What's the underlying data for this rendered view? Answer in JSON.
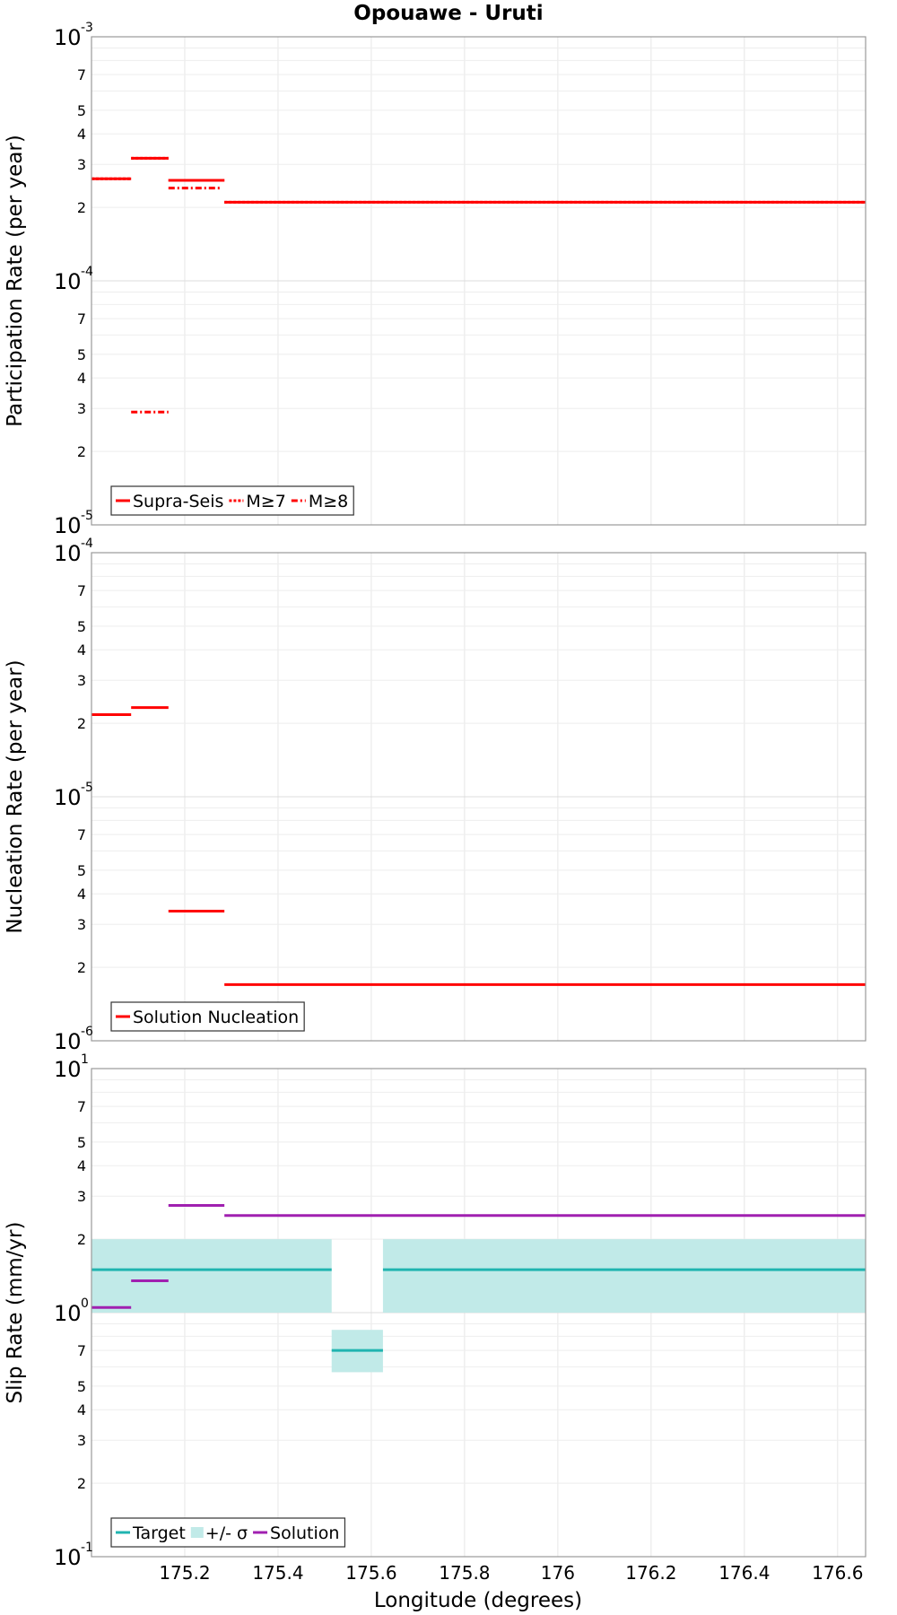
{
  "chart_data": [
    {
      "type": "line",
      "title": "Opouawe - Uruti",
      "ylabel": "Participation Rate (per year)",
      "xlabel": "",
      "yscale": "log",
      "ylim": [
        1e-05,
        0.001
      ],
      "xlim": [
        175.0,
        176.66
      ],
      "decade_ticks": [
        {
          "base": "10",
          "exp": "-5",
          "value": 1e-05
        },
        {
          "base": "10",
          "exp": "-4",
          "value": 0.0001
        },
        {
          "base": "10",
          "exp": "-3",
          "value": 0.001
        }
      ],
      "minor_ticks": [
        {
          "label": "2",
          "value": 2e-05
        },
        {
          "label": "3",
          "value": 3e-05
        },
        {
          "label": "4",
          "value": 4e-05
        },
        {
          "label": "5",
          "value": 5e-05
        },
        {
          "label": "7",
          "value": 7e-05
        },
        {
          "label": "2",
          "value": 0.0002
        },
        {
          "label": "3",
          "value": 0.0003
        },
        {
          "label": "4",
          "value": 0.0004
        },
        {
          "label": "5",
          "value": 0.0005
        },
        {
          "label": "7",
          "value": 0.0007
        }
      ],
      "series": [
        {
          "name": "Supra-Seis",
          "color": "#ff0000",
          "style": "solid",
          "segments": [
            [
              175.0,
              175.085,
              0.000262
            ],
            [
              175.085,
              175.165,
              0.000318
            ],
            [
              175.165,
              175.285,
              0.000258
            ],
            [
              175.285,
              176.66,
              0.00021
            ]
          ]
        },
        {
          "name": "M≥7",
          "color": "#ff0000",
          "style": "dotted",
          "segments": [
            [
              175.0,
              175.085,
              0.000262
            ],
            [
              175.085,
              175.165,
              0.000318
            ],
            [
              175.165,
              175.285,
              0.000258
            ],
            [
              175.285,
              176.66,
              0.00021
            ]
          ]
        },
        {
          "name": "M≥8",
          "color": "#ff0000",
          "style": "dashdot",
          "segments": [
            [
              175.085,
              175.165,
              2.9e-05
            ],
            [
              175.165,
              175.275,
              0.00024
            ]
          ]
        }
      ],
      "legend": {
        "position": "bottom-left",
        "entries": [
          "Supra-Seis",
          "M≥7",
          "M≥8"
        ]
      }
    },
    {
      "type": "line",
      "ylabel": "Nucleation Rate (per year)",
      "xlabel": "",
      "yscale": "log",
      "ylim": [
        1e-06,
        0.0001
      ],
      "xlim": [
        175.0,
        176.66
      ],
      "decade_ticks": [
        {
          "base": "10",
          "exp": "-6",
          "value": 1e-06
        },
        {
          "base": "10",
          "exp": "-5",
          "value": 1e-05
        },
        {
          "base": "10",
          "exp": "-4",
          "value": 0.0001
        }
      ],
      "minor_ticks": [
        {
          "label": "2",
          "value": 2e-06
        },
        {
          "label": "3",
          "value": 3e-06
        },
        {
          "label": "4",
          "value": 4e-06
        },
        {
          "label": "5",
          "value": 5e-06
        },
        {
          "label": "7",
          "value": 7e-06
        },
        {
          "label": "2",
          "value": 2e-05
        },
        {
          "label": "3",
          "value": 3e-05
        },
        {
          "label": "4",
          "value": 4e-05
        },
        {
          "label": "5",
          "value": 5e-05
        },
        {
          "label": "7",
          "value": 7e-05
        }
      ],
      "series": [
        {
          "name": "Solution Nucleation",
          "color": "#ff0000",
          "style": "solid",
          "segments": [
            [
              175.0,
              175.085,
              2.17e-05
            ],
            [
              175.085,
              175.165,
              2.32e-05
            ],
            [
              175.165,
              175.285,
              3.4e-06
            ],
            [
              175.285,
              176.66,
              1.7e-06
            ]
          ]
        }
      ],
      "legend": {
        "position": "bottom-left",
        "entries": [
          "Solution Nucleation"
        ]
      }
    },
    {
      "type": "line",
      "ylabel": "Slip Rate (mm/yr)",
      "xlabel": "Longitude (degrees)",
      "yscale": "log",
      "ylim": [
        0.1,
        10
      ],
      "xlim": [
        175.0,
        176.66
      ],
      "decade_ticks": [
        {
          "base": "10",
          "exp": "-1",
          "value": 0.1
        },
        {
          "base": "10",
          "exp": "0",
          "value": 1
        },
        {
          "base": "10",
          "exp": "1",
          "value": 10
        }
      ],
      "minor_ticks": [
        {
          "label": "2",
          "value": 0.2
        },
        {
          "label": "3",
          "value": 0.3
        },
        {
          "label": "4",
          "value": 0.4
        },
        {
          "label": "5",
          "value": 0.5
        },
        {
          "label": "7",
          "value": 0.7
        },
        {
          "label": "2",
          "value": 2
        },
        {
          "label": "3",
          "value": 3
        },
        {
          "label": "4",
          "value": 4
        },
        {
          "label": "5",
          "value": 5
        },
        {
          "label": "7",
          "value": 7
        }
      ],
      "x_ticks": [
        "175.2",
        "175.4",
        "175.6",
        "175.8",
        "176",
        "176.2",
        "176.4",
        "176.6"
      ],
      "x_tick_values": [
        175.2,
        175.4,
        175.6,
        175.8,
        176.0,
        176.2,
        176.4,
        176.6
      ],
      "bands": [
        {
          "name": "+/- σ",
          "color": "#c1eae8",
          "ranges": [
            [
              175.0,
              175.515,
              1.0,
              2.0
            ],
            [
              175.515,
              175.625,
              0.57,
              0.85
            ],
            [
              175.625,
              176.66,
              1.0,
              2.0
            ]
          ]
        }
      ],
      "series": [
        {
          "name": "Target",
          "color": "#20b4b0",
          "style": "solid",
          "segments": [
            [
              175.0,
              175.515,
              1.5
            ],
            [
              175.515,
              175.625,
              0.7
            ],
            [
              175.625,
              176.66,
              1.5
            ]
          ]
        },
        {
          "name": "Solution",
          "color": "#a020b0",
          "style": "solid",
          "segments": [
            [
              175.0,
              175.085,
              1.05
            ],
            [
              175.085,
              175.165,
              1.35
            ],
            [
              175.165,
              175.285,
              2.75
            ],
            [
              175.285,
              176.66,
              2.5
            ]
          ]
        }
      ],
      "legend": {
        "position": "bottom-left",
        "entries": [
          "Target",
          "+/- σ",
          "Solution"
        ]
      }
    }
  ]
}
